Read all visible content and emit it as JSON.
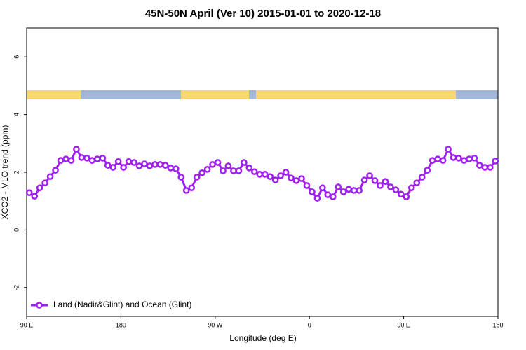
{
  "chart_data": {
    "type": "line",
    "title": "45N-50N April (Ver 10)   2015-01-01 to 2020-12-18",
    "x_label": "Longitude (deg E)",
    "y_label": "XCO2 - MLO trend (ppm)",
    "xlim": [
      90,
      540
    ],
    "ylim": [
      -3,
      7
    ],
    "xticks": [
      {
        "value": 90,
        "label": "90 E"
      },
      {
        "value": 180,
        "label": "180"
      },
      {
        "value": 270,
        "label": "90 W"
      },
      {
        "value": 360,
        "label": "0"
      },
      {
        "value": 450,
        "label": "90 E"
      },
      {
        "value": 540,
        "label": "180"
      }
    ],
    "yticks": [
      -2,
      0,
      2,
      4,
      6
    ],
    "grid": false,
    "legend": "bottom-left",
    "x": [
      92.5,
      97.5,
      102.5,
      107.5,
      112.5,
      117.5,
      122.5,
      127.5,
      132.5,
      137.5,
      142.5,
      147.5,
      152.5,
      157.5,
      162.5,
      167.5,
      172.5,
      177.5,
      182.5,
      187.5,
      192.5,
      197.5,
      202.5,
      207.5,
      212.5,
      217.5,
      222.5,
      227.5,
      232.5,
      237.5,
      242.5,
      247.5,
      252.5,
      257.5,
      262.5,
      267.5,
      272.5,
      277.5,
      282.5,
      287.5,
      292.5,
      297.5,
      302.5,
      307.5,
      312.5,
      317.5,
      322.5,
      327.5,
      332.5,
      337.5,
      342.5,
      347.5,
      352.5,
      357.5,
      362.5,
      367.5,
      372.5,
      377.5,
      382.5,
      387.5,
      392.5,
      397.5,
      402.5,
      407.5,
      412.5,
      417.5,
      422.5,
      427.5,
      432.5,
      437.5,
      442.5,
      447.5,
      452.5,
      457.5,
      462.5,
      467.5,
      472.5,
      477.5,
      482.5,
      487.5,
      492.5,
      497.5,
      502.5,
      507.5,
      512.5,
      517.5,
      522.5,
      527.5,
      532.5,
      537.5
    ],
    "series": [
      {
        "name": "Land (Nadir&Glint) and Ocean (Glint)",
        "color": "#a020f0",
        "values": [
          1.29,
          1.17,
          1.46,
          1.63,
          1.85,
          2.07,
          2.41,
          2.46,
          2.41,
          2.8,
          2.51,
          2.49,
          2.41,
          2.46,
          2.49,
          2.24,
          2.17,
          2.37,
          2.17,
          2.37,
          2.34,
          2.22,
          2.29,
          2.22,
          2.27,
          2.27,
          2.24,
          2.15,
          2.12,
          1.83,
          1.37,
          1.46,
          1.83,
          1.98,
          2.1,
          2.27,
          2.34,
          2.05,
          2.22,
          2.05,
          2.05,
          2.34,
          2.15,
          2.02,
          1.93,
          1.93,
          1.85,
          1.73,
          1.88,
          2.0,
          1.8,
          1.71,
          1.78,
          1.54,
          1.32,
          1.1,
          1.46,
          1.22,
          1.15,
          1.49,
          1.32,
          1.41,
          1.37,
          1.37,
          1.73,
          1.88,
          1.71,
          1.54,
          1.68,
          1.49,
          1.39,
          1.24,
          1.15,
          1.46,
          1.63,
          1.83,
          2.07,
          2.41,
          2.46,
          2.41,
          2.8,
          2.51,
          2.49,
          2.41,
          2.46,
          2.49,
          2.24,
          2.17,
          2.17,
          2.39
        ]
      }
    ]
  }
}
